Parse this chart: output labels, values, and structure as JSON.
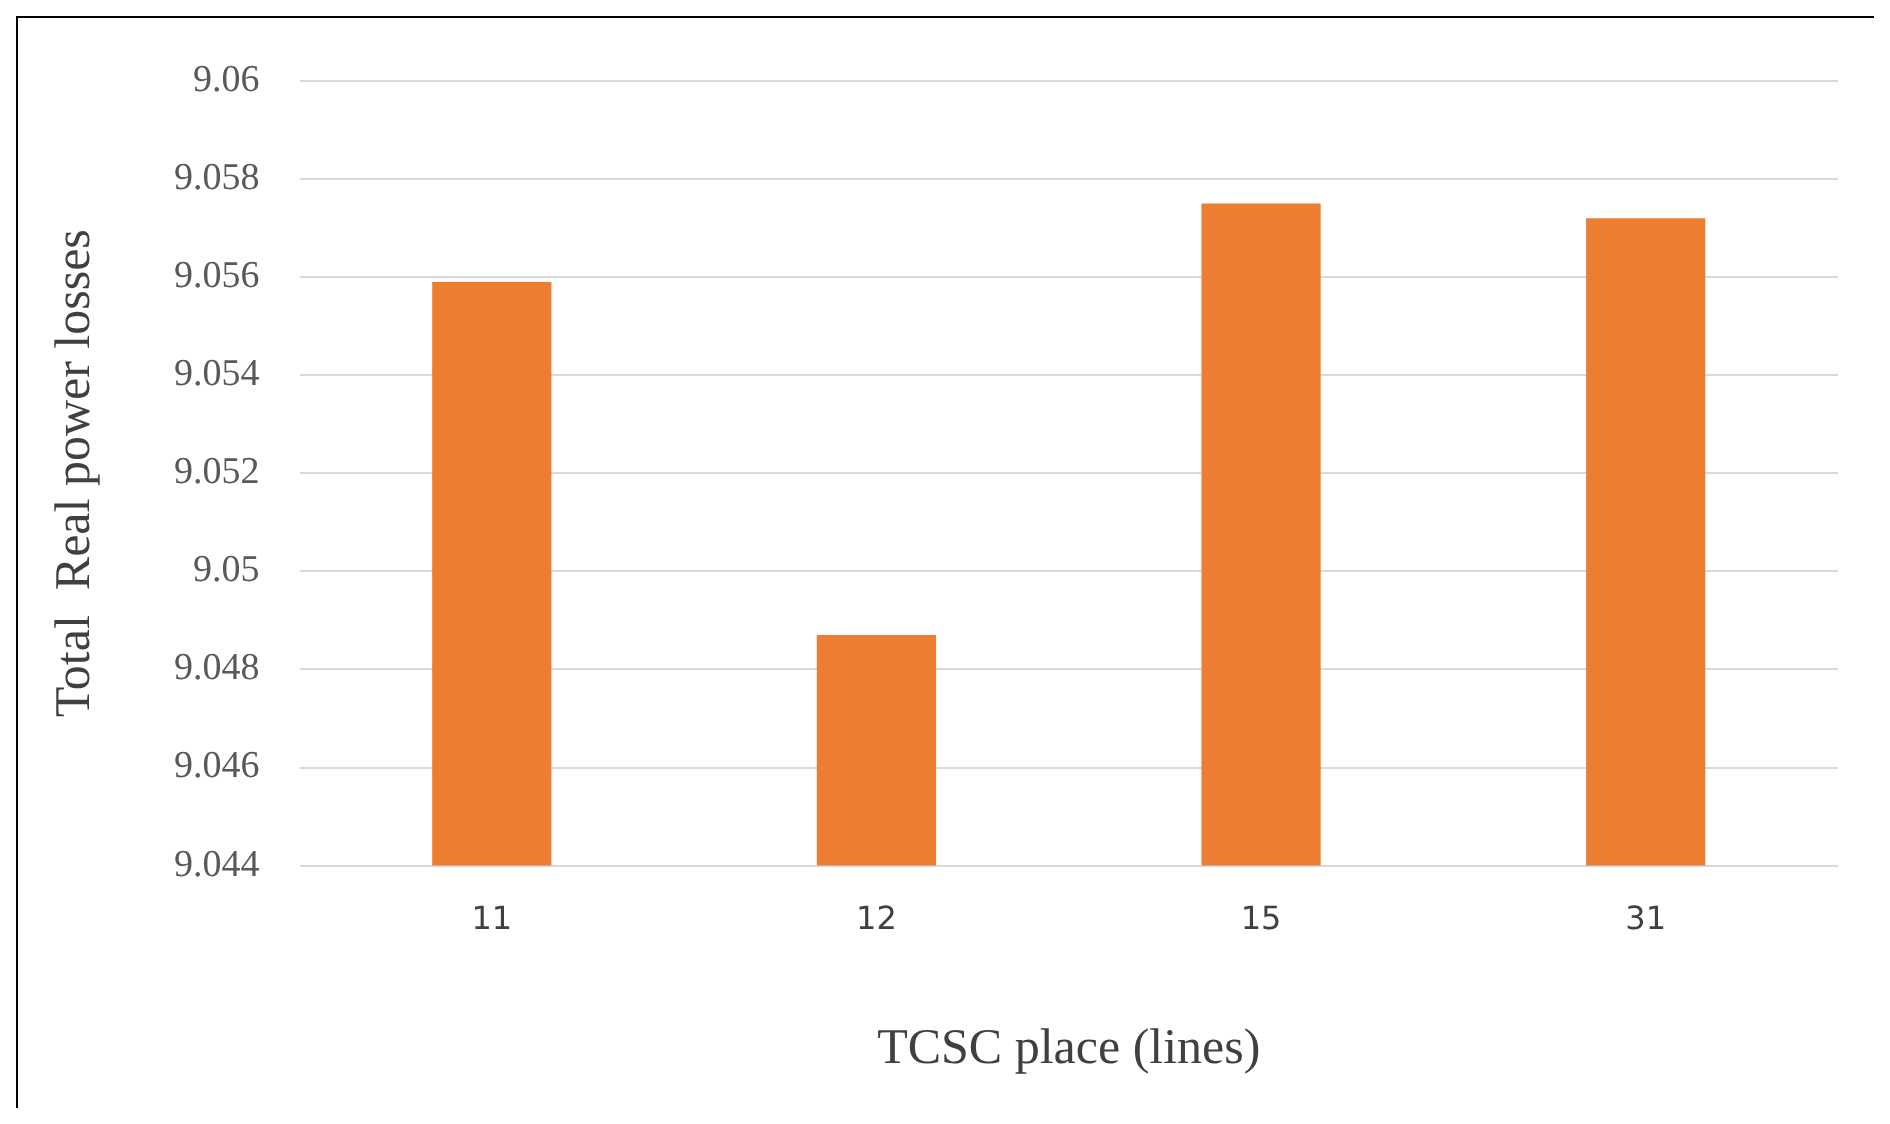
{
  "chart_data": {
    "type": "bar",
    "xlabel": "TCSC place (lines)",
    "ylabel": "Total  Real power losses",
    "categories": [
      "11",
      "12",
      "15",
      "31"
    ],
    "values": [
      9.0559,
      9.0487,
      9.0575,
      9.0572
    ],
    "color": "#ed7d31",
    "ylim": [
      9.044,
      9.06
    ],
    "yticks": [
      9.044,
      9.046,
      9.048,
      9.05,
      9.052,
      9.054,
      9.056,
      9.058,
      9.06
    ],
    "grid": "y"
  }
}
